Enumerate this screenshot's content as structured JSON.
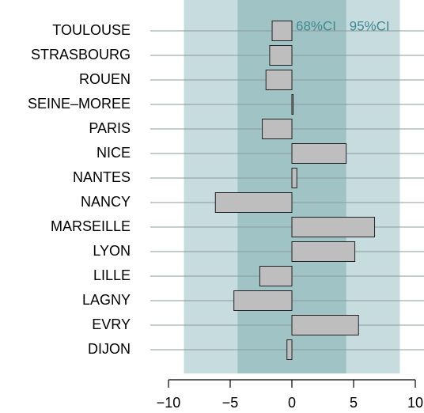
{
  "chart_data": {
    "type": "bar",
    "orientation": "horizontal",
    "categories": [
      "TOULOUSE",
      "STRASBOURG",
      "ROUEN",
      "SEINE–MOREE",
      "PARIS",
      "NICE",
      "NANTES",
      "NANCY",
      "MARSEILLE",
      "LYON",
      "LILLE",
      "LAGNY",
      "EVRY",
      "DIJON"
    ],
    "values": [
      -1.6,
      -1.8,
      -2.1,
      0.1,
      -2.4,
      4.4,
      0.4,
      -6.2,
      6.7,
      5.1,
      -2.6,
      -4.7,
      5.4,
      -0.4
    ],
    "color": "#bebebe",
    "bands": [
      {
        "name": "95%CI",
        "range": [
          -8.75,
          8.75
        ],
        "color": "#c6dcdf"
      },
      {
        "name": "68%CI",
        "range": [
          -4.4,
          4.4
        ],
        "color": "#a0c3c5"
      }
    ],
    "xlim": [
      -10,
      10
    ],
    "xticks": [
      {
        "value": -10,
        "label": "−10"
      },
      {
        "value": -5,
        "label": "−5"
      },
      0,
      5,
      10
    ]
  }
}
